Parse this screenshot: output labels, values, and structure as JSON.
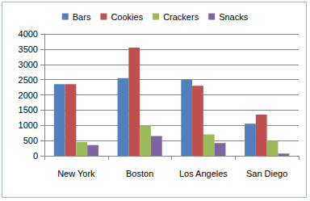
{
  "chart_data": {
    "type": "bar",
    "categories": [
      "New York",
      "Boston",
      "Los Angeles",
      "San Diego"
    ],
    "series": [
      {
        "name": "Bars",
        "color": "#4f81bd",
        "values": [
          2350,
          2550,
          2500,
          1050
        ]
      },
      {
        "name": "Cookies",
        "color": "#c0504d",
        "values": [
          2350,
          3550,
          2300,
          1350
        ]
      },
      {
        "name": "Crackers",
        "color": "#9bbb59",
        "values": [
          450,
          1000,
          700,
          500
        ]
      },
      {
        "name": "Snacks",
        "color": "#8064a2",
        "values": [
          350,
          650,
          420,
          70
        ]
      }
    ],
    "ylim": [
      0,
      4000
    ],
    "yticks": [
      0,
      500,
      1000,
      1500,
      2000,
      2500,
      3000,
      3500,
      4000
    ],
    "grid": true,
    "legend": "top"
  }
}
